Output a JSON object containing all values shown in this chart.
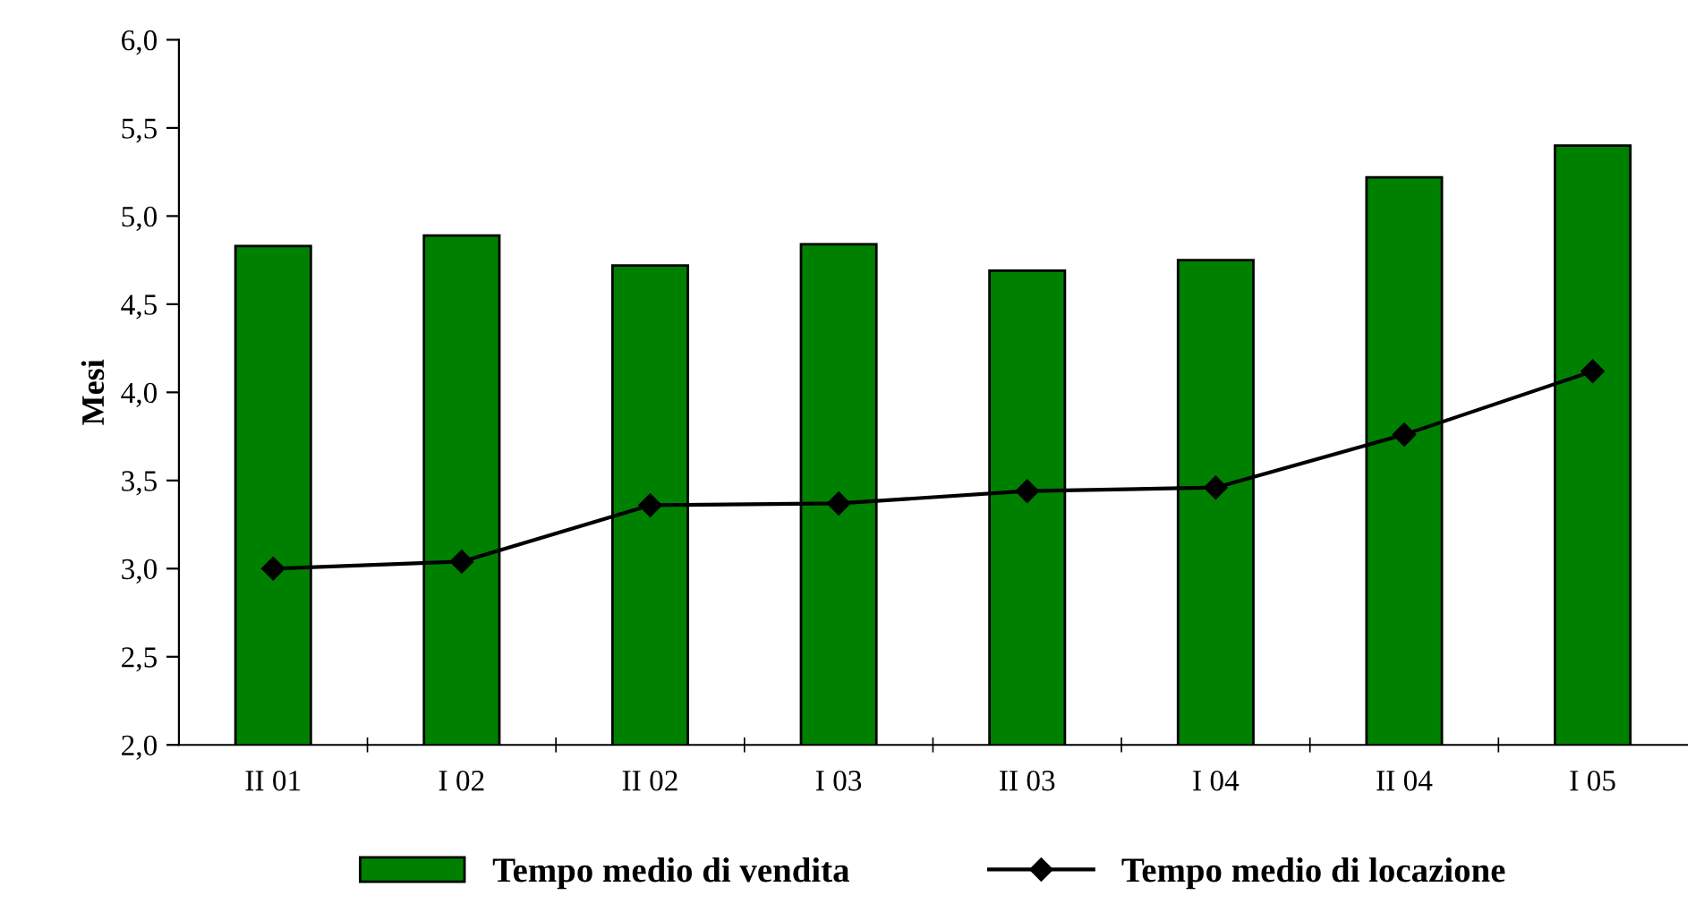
{
  "chart_data": {
    "type": "bar",
    "ylabel": "Mesi",
    "categories": [
      "II 01",
      "I 02",
      "II 02",
      "I 03",
      "II 03",
      "I 04",
      "II 04",
      "I 05"
    ],
    "series": [
      {
        "name": "Tempo medio di vendita",
        "color": "#008000",
        "values": [
          4.83,
          4.89,
          4.72,
          4.84,
          4.69,
          4.75,
          5.22,
          5.4
        ]
      },
      {
        "name": "Tempo medio di locazione",
        "type": "line",
        "color": "#000000",
        "marker": "diamond",
        "values": [
          3.0,
          3.04,
          3.36,
          3.37,
          3.44,
          3.46,
          3.76,
          4.12
        ]
      }
    ],
    "ylim": [
      2.0,
      6.0
    ],
    "yticks": [
      {
        "value": 2.0,
        "label": "2,0"
      },
      {
        "value": 2.5,
        "label": "2,5"
      },
      {
        "value": 3.0,
        "label": "3,0"
      },
      {
        "value": 3.5,
        "label": "3,5"
      },
      {
        "value": 4.0,
        "label": "4,0"
      },
      {
        "value": 4.5,
        "label": "4,5"
      },
      {
        "value": 5.0,
        "label": "5,0"
      },
      {
        "value": 5.5,
        "label": "5,5"
      },
      {
        "value": 6.0,
        "label": "6,0"
      }
    ],
    "grid": false,
    "legend": "bottom"
  }
}
